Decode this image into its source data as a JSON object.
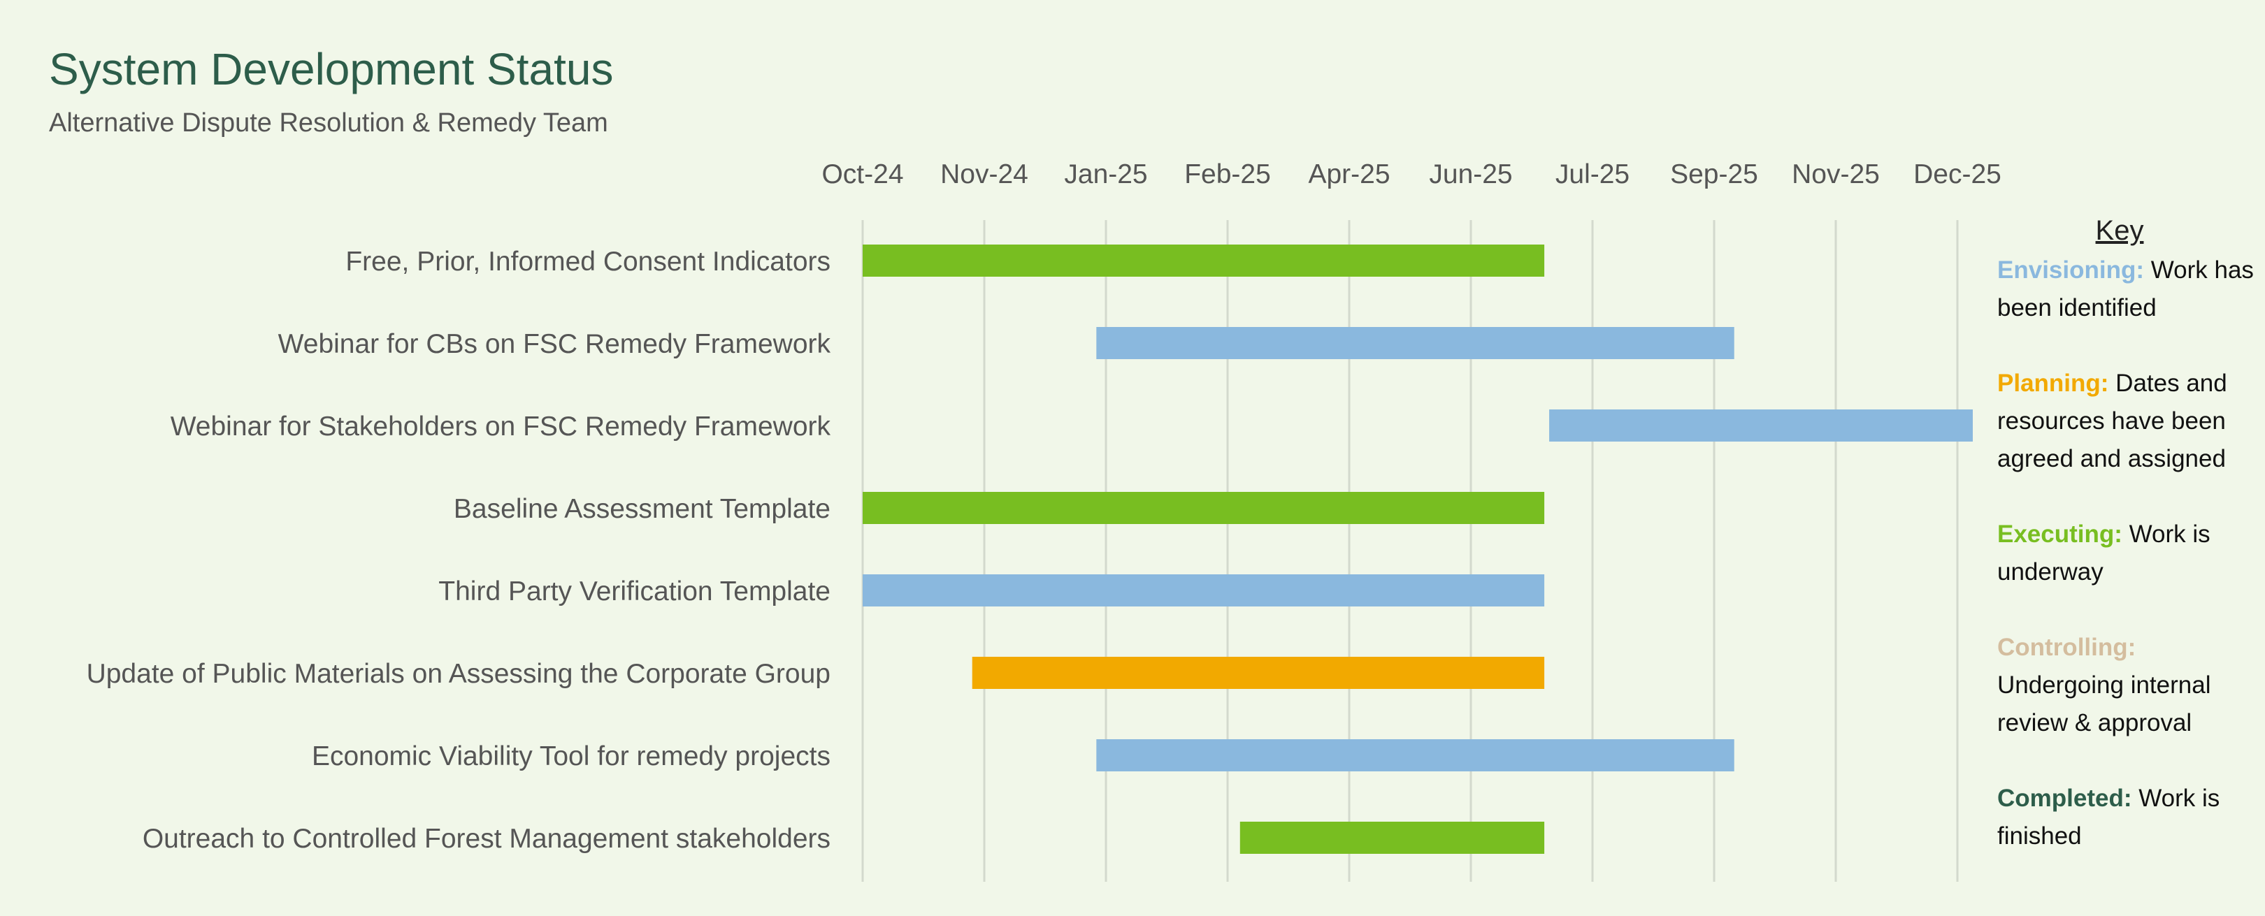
{
  "header": {
    "title": "System Development Status",
    "subtitle": "Alternative Dispute Resolution & Remedy Team"
  },
  "chart_data": {
    "type": "gantt",
    "x_ticks": [
      "Oct-24",
      "Nov-24",
      "Jan-25",
      "Feb-25",
      "Apr-25",
      "Jun-25",
      "Jul-25",
      "Sep-25",
      "Nov-25",
      "Dec-25"
    ],
    "x_range": [
      "Oct-24",
      "Dec-25"
    ],
    "grid": true,
    "tasks": [
      {
        "name": "Free, Prior, Informed Consent Indicators",
        "start": "2024-10-01",
        "end": "2025-07-08",
        "status": "Executing"
      },
      {
        "name": "Webinar for CBs on FSC Remedy Framework",
        "start": "2025-01-05",
        "end": "2025-09-24",
        "status": "Envisioning"
      },
      {
        "name": "Webinar for Stakeholders on FSC Remedy Framework",
        "start": "2025-07-10",
        "end": "2025-12-31",
        "status": "Envisioning"
      },
      {
        "name": "Baseline Assessment Template",
        "start": "2024-10-01",
        "end": "2025-07-08",
        "status": "Executing"
      },
      {
        "name": "Third Party Verification Template",
        "start": "2024-10-01",
        "end": "2025-07-08",
        "status": "Envisioning"
      },
      {
        "name": "Update of Public Materials on Assessing the Corporate Group",
        "start": "2024-11-15",
        "end": "2025-07-08",
        "status": "Planning"
      },
      {
        "name": "Economic Viability Tool for remedy projects",
        "start": "2025-01-05",
        "end": "2025-09-24",
        "status": "Envisioning"
      },
      {
        "name": "Outreach to Controlled Forest Management stakeholders",
        "start": "2025-03-05",
        "end": "2025-07-08",
        "status": "Executing"
      }
    ]
  },
  "key": {
    "title": "Key",
    "items": [
      {
        "status": "Envisioning",
        "label": "Envisioning:",
        "text": "Work has been identified",
        "color": "#8ab8de"
      },
      {
        "status": "Planning",
        "label": "Planning:",
        "text": "Dates and resources have been agreed and assigned",
        "color": "#f2a900"
      },
      {
        "status": "Executing",
        "label": "Executing:",
        "text": "Work is underway",
        "color": "#78be21"
      },
      {
        "status": "Controlling",
        "label": "Controlling:",
        "text": "Undergoing internal review & approval",
        "color": "#d4bd9e"
      },
      {
        "status": "Completed",
        "label": "Completed:",
        "text": "Work is finished",
        "color": "#2d5d4a"
      }
    ]
  }
}
